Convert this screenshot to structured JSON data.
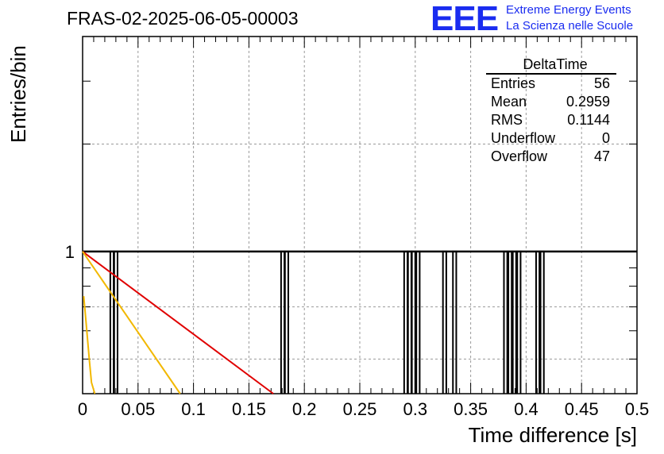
{
  "header": {
    "title": "FRAS-02-2025-06-05-00003",
    "logo_text": "EEE",
    "logo_line1": "Extreme Energy Events",
    "logo_line2": "La Scienza nelle Scuole"
  },
  "stats_box": {
    "name": "DeltaTime",
    "rows": [
      {
        "label": "Entries",
        "value": "56"
      },
      {
        "label": "Mean",
        "value": "0.2959"
      },
      {
        "label": "RMS",
        "value": "0.1144"
      },
      {
        "label": "Underflow",
        "value": "0"
      },
      {
        "label": "Overflow",
        "value": "47"
      }
    ]
  },
  "chart_data": {
    "type": "bar",
    "title": "FRAS-02-2025-06-05-00003",
    "xlabel": "Time difference [s]",
    "ylabel": "Entries/bin",
    "xlim": [
      0,
      0.5
    ],
    "ylim_log": [
      0.4,
      4
    ],
    "log_y": true,
    "grid": true,
    "x_ticks": [
      0,
      0.05,
      0.1,
      0.15,
      0.2,
      0.25,
      0.3,
      0.35,
      0.4,
      0.45,
      0.5
    ],
    "x_tick_labels": [
      "0",
      "0.05",
      "0.1",
      "0.15",
      "0.2",
      "0.25",
      "0.3",
      "0.35",
      "0.4",
      "0.45",
      "0.5"
    ],
    "y_tick_labels": [
      {
        "value": 1,
        "label": "1"
      }
    ],
    "bin_width": 0.003,
    "entries": [
      0.025,
      0.0285,
      0.179,
      0.1825,
      0.29,
      0.2935,
      0.297,
      0.301,
      0.325,
      0.334,
      0.38,
      0.384,
      0.388,
      0.392,
      0.409,
      0.413
    ],
    "entry_value": 1,
    "fit_curves": [
      {
        "color": "#e00000",
        "x": [
          0,
          0.172
        ],
        "y": [
          1,
          0.4
        ]
      },
      {
        "color": "#f2b800",
        "x": [
          0,
          0.088
        ],
        "y": [
          1,
          0.4
        ]
      },
      {
        "color": "#f2b800",
        "x": [
          0.001,
          0.003,
          0.006,
          0.008,
          0.011
        ],
        "y": [
          0.75,
          0.64,
          0.5,
          0.43,
          0.4
        ]
      }
    ]
  }
}
